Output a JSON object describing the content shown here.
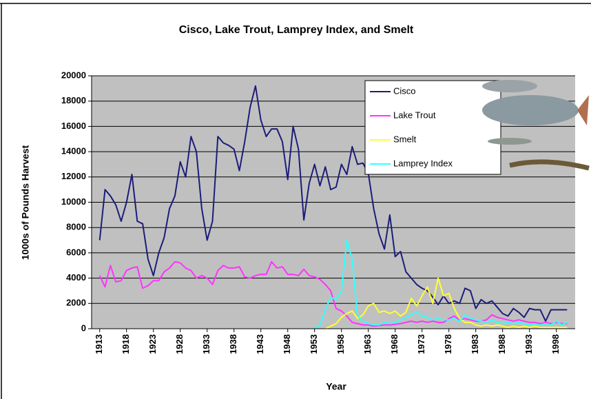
{
  "chart_data": {
    "type": "line",
    "title": "Cisco, Lake Trout, Lamprey Index, and Smelt",
    "x_label": "Year",
    "y_label": "1000s of Pounds Harvest",
    "x": [
      1913,
      1914,
      1915,
      1916,
      1917,
      1918,
      1919,
      1920,
      1921,
      1922,
      1923,
      1924,
      1925,
      1926,
      1927,
      1928,
      1929,
      1930,
      1931,
      1932,
      1933,
      1934,
      1935,
      1936,
      1937,
      1938,
      1939,
      1940,
      1941,
      1942,
      1943,
      1944,
      1945,
      1946,
      1947,
      1948,
      1949,
      1950,
      1951,
      1952,
      1953,
      1954,
      1955,
      1956,
      1957,
      1958,
      1959,
      1960,
      1961,
      1962,
      1963,
      1964,
      1965,
      1966,
      1967,
      1968,
      1969,
      1970,
      1971,
      1972,
      1973,
      1974,
      1975,
      1976,
      1977,
      1978,
      1979,
      1980,
      1981,
      1982,
      1983,
      1984,
      1985,
      1986,
      1987,
      1988,
      1989,
      1990,
      1991,
      1992,
      1993,
      1994,
      1995,
      1996,
      1997,
      1998,
      1999,
      2000
    ],
    "series": [
      {
        "name": "Cisco",
        "color": "#1c1c7a",
        "values": [
          7000,
          11000,
          10500,
          9800,
          8500,
          10000,
          12200,
          8500,
          8300,
          5500,
          4200,
          6000,
          7200,
          9500,
          10500,
          13200,
          12000,
          15200,
          14000,
          9500,
          7000,
          8500,
          15200,
          14700,
          14500,
          14200,
          12500,
          14800,
          17500,
          19200,
          16500,
          15200,
          15800,
          15800,
          14800,
          11800,
          16000,
          14200,
          8600,
          11500,
          13000,
          11300,
          12800,
          11000,
          11200,
          13000,
          12200,
          14400,
          13000,
          13100,
          12300,
          9500,
          7500,
          6300,
          9000,
          5700,
          6100,
          4500,
          4000,
          3500,
          3200,
          3000,
          2500,
          1900,
          2600,
          2000,
          2200,
          2000,
          3200,
          3000,
          1600,
          2300,
          2000,
          2200,
          1700,
          1200,
          1000,
          1600,
          1300,
          900,
          1600,
          1500,
          1500,
          600,
          1500,
          1500,
          1500,
          1500
        ]
      },
      {
        "name": "Lake Trout",
        "color": "#ff33ff",
        "values": [
          4200,
          3300,
          5000,
          3700,
          3800,
          4600,
          4800,
          4900,
          3200,
          3400,
          3800,
          3800,
          4500,
          4800,
          5300,
          5200,
          4800,
          4600,
          4000,
          4200,
          4000,
          3500,
          4600,
          5000,
          4800,
          4800,
          4900,
          4100,
          4000,
          4200,
          4300,
          4300,
          5300,
          4800,
          4900,
          4300,
          4300,
          4200,
          4700,
          4200,
          4100,
          3900,
          3500,
          3000,
          1600,
          1400,
          1000,
          500,
          400,
          300,
          300,
          200,
          250,
          300,
          300,
          350,
          400,
          500,
          600,
          500,
          600,
          500,
          600,
          500,
          500,
          800,
          1000,
          700,
          800,
          700,
          600,
          600,
          700,
          1100,
          900,
          800,
          700,
          600,
          700,
          600,
          500,
          500,
          400,
          500,
          400,
          500,
          400,
          400
        ]
      },
      {
        "name": "Smelt",
        "color": "#ffff33",
        "values": [
          null,
          null,
          null,
          null,
          null,
          null,
          null,
          null,
          null,
          null,
          null,
          null,
          null,
          null,
          null,
          null,
          null,
          null,
          null,
          null,
          null,
          null,
          null,
          null,
          null,
          null,
          null,
          null,
          null,
          null,
          null,
          null,
          null,
          null,
          null,
          null,
          null,
          null,
          null,
          null,
          null,
          null,
          0,
          200,
          400,
          900,
          1200,
          1400,
          800,
          1100,
          1800,
          2000,
          1300,
          1400,
          1200,
          1400,
          1000,
          1300,
          2400,
          1800,
          2600,
          3300,
          2000,
          4000,
          2600,
          2800,
          1600,
          800,
          500,
          500,
          300,
          200,
          300,
          200,
          300,
          200,
          100,
          200,
          100,
          200,
          100,
          200,
          100,
          100,
          100,
          100,
          100,
          100
        ]
      },
      {
        "name": "Lamprey Index",
        "color": "#33ffff",
        "values": [
          null,
          null,
          null,
          null,
          null,
          null,
          null,
          null,
          null,
          null,
          null,
          null,
          null,
          null,
          null,
          null,
          null,
          null,
          null,
          null,
          null,
          null,
          null,
          null,
          null,
          null,
          null,
          null,
          null,
          null,
          null,
          null,
          null,
          null,
          null,
          null,
          null,
          null,
          null,
          null,
          0,
          300,
          1500,
          2500,
          2300,
          3000,
          7000,
          5500,
          1000,
          600,
          400,
          300,
          300,
          500,
          400,
          500,
          700,
          900,
          1100,
          1300,
          1000,
          900,
          700,
          800,
          700,
          700,
          800,
          600,
          1100,
          800,
          700,
          600,
          500,
          700,
          500,
          400,
          500,
          400,
          500,
          400,
          300,
          300,
          300,
          400,
          300,
          600,
          300,
          500
        ]
      }
    ],
    "xlim": [
      1911.5,
      2001.5
    ],
    "xticks": [
      1913,
      1918,
      1923,
      1928,
      1933,
      1938,
      1943,
      1948,
      1953,
      1958,
      1963,
      1968,
      1973,
      1978,
      1983,
      1988,
      1993,
      1998
    ],
    "ylim": [
      0,
      20000
    ],
    "yticks": [
      0,
      2000,
      4000,
      6000,
      8000,
      10000,
      12000,
      14000,
      16000,
      18000,
      20000
    ],
    "grid": true,
    "legend": "upper right"
  }
}
